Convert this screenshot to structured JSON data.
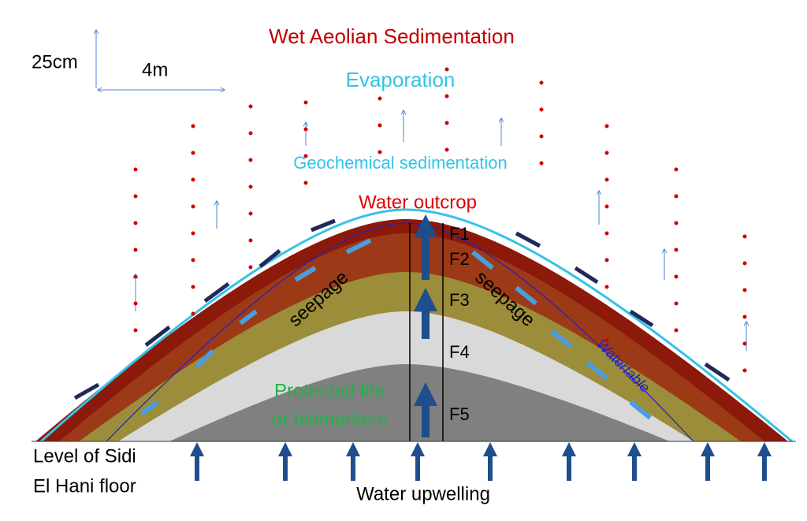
{
  "scale": {
    "vertical": "25cm",
    "horizontal": "4m"
  },
  "labels": {
    "title": "Wet Aeolian Sedimentation",
    "evaporation": "Evaporation",
    "geochemical": "Geochemical sedimentation",
    "outcrop": "Water outcrop",
    "seepage_left": "seepage",
    "seepage_right": "seepage",
    "watertable": "Watertable",
    "protected": [
      "Protected life",
      "or biomarkers"
    ],
    "floor": [
      "Level of Sidi",
      "El Hani floor"
    ],
    "upwelling": "Water upwelling"
  },
  "facies": [
    "F1",
    "F2",
    "F3",
    "F4",
    "F5"
  ]
}
